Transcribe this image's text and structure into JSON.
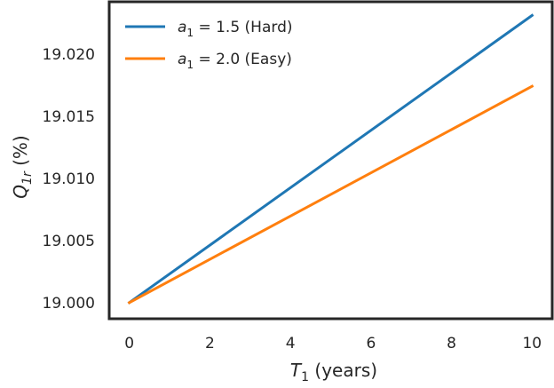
{
  "chart_data": {
    "type": "line",
    "title": "",
    "xlabel": {
      "var": "T",
      "sub": "1",
      "rest": " (years)"
    },
    "ylabel": {
      "var": "Q",
      "sub": "1r",
      "rest": " (%)"
    },
    "xlim": [
      -0.5,
      10.5
    ],
    "ylim": [
      18.9987,
      19.0242
    ],
    "xticks": [
      0,
      2,
      4,
      6,
      8,
      10
    ],
    "xtick_labels": [
      "0",
      "2",
      "4",
      "6",
      "8",
      "10"
    ],
    "yticks": [
      19.0,
      19.005,
      19.01,
      19.015,
      19.02
    ],
    "ytick_labels": [
      "19.000",
      "19.005",
      "19.010",
      "19.015",
      "19.020"
    ],
    "grid": false,
    "legend_position": "top-left",
    "series": [
      {
        "var": "a",
        "sub": "1",
        "rest": " = 1.5 (Hard)",
        "color": "#1f77b4",
        "x": [
          0,
          10
        ],
        "y": [
          19.0,
          19.0231
        ]
      },
      {
        "var": "a",
        "sub": "1",
        "rest": " = 2.0 (Easy)",
        "color": "#ff7f0e",
        "x": [
          0,
          10
        ],
        "y": [
          19.0,
          19.0174
        ]
      }
    ]
  }
}
